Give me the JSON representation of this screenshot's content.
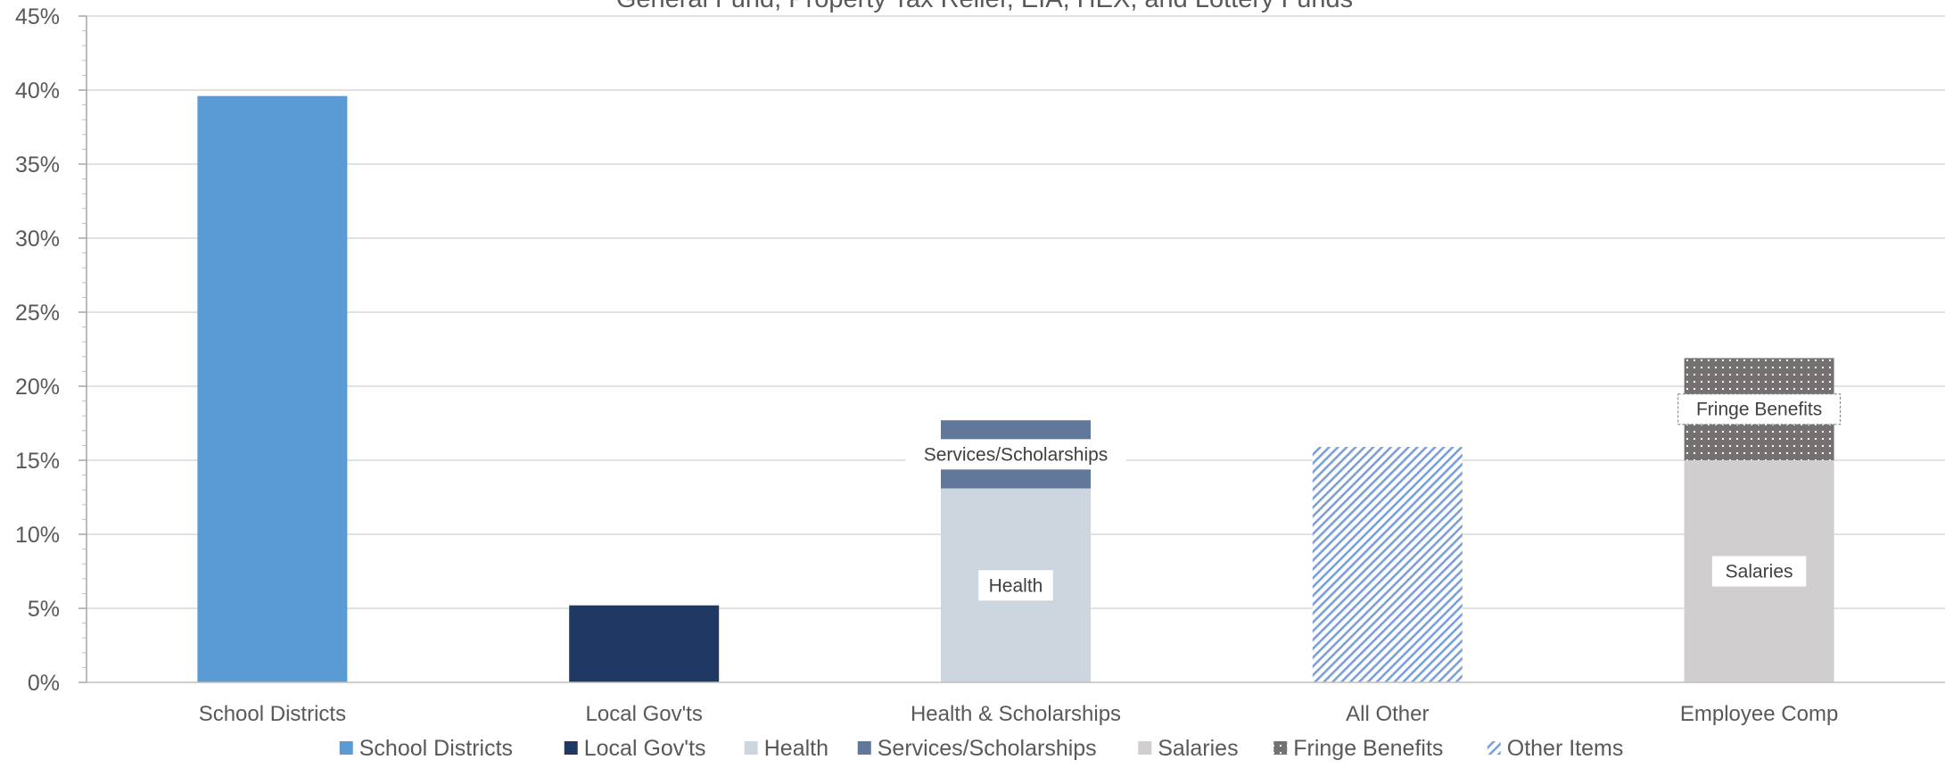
{
  "chart_data": {
    "type": "bar",
    "stacked": true,
    "title": "General Fund, Property Tax Relief, EIA, HEX, and Lottery Funds",
    "categories": [
      "School Districts",
      "Local Gov'ts",
      "Health & Scholarships",
      "All Other",
      "Employee Comp"
    ],
    "ylim": [
      0,
      45
    ],
    "yticks": [
      "0%",
      "5%",
      "10%",
      "15%",
      "20%",
      "25%",
      "30%",
      "35%",
      "40%",
      "45%"
    ],
    "yunit": "%",
    "grid": true,
    "legend_position": "bottom",
    "series": [
      {
        "name": "School Districts",
        "values": [
          39.6,
          0,
          0,
          0,
          0
        ],
        "color": "#5b9bd5",
        "pattern": "solid"
      },
      {
        "name": "Local Gov'ts",
        "values": [
          0,
          5.2,
          0,
          0,
          0
        ],
        "color": "#203864",
        "pattern": "solid"
      },
      {
        "name": "Health",
        "values": [
          0,
          0,
          13.1,
          0,
          0
        ],
        "color": "#cdd5df",
        "pattern": "solid"
      },
      {
        "name": "Services/Scholarships",
        "values": [
          0,
          0,
          4.6,
          0,
          0
        ],
        "color": "#61789a",
        "pattern": "solid"
      },
      {
        "name": "Salaries",
        "values": [
          0,
          0,
          0,
          0,
          15.0
        ],
        "color": "#d0cece",
        "pattern": "solid"
      },
      {
        "name": "Fringe Benefits",
        "values": [
          0,
          0,
          0,
          0,
          6.9
        ],
        "color": "#767171",
        "pattern": "dots"
      },
      {
        "name": "Other Items",
        "values": [
          0,
          0,
          0,
          15.9,
          0
        ],
        "color": "#7b9fd9",
        "pattern": "diagonal"
      }
    ],
    "data_labels": [
      {
        "text": "Health",
        "series": "Health",
        "category": "Health & Scholarships"
      },
      {
        "text": "Services/Scholarships",
        "series": "Services/Scholarships",
        "category": "Health & Scholarships"
      },
      {
        "text": "Salaries",
        "series": "Salaries",
        "category": "Employee Comp"
      },
      {
        "text": "Fringe Benefits",
        "series": "Fringe Benefits",
        "category": "Employee Comp"
      }
    ]
  }
}
